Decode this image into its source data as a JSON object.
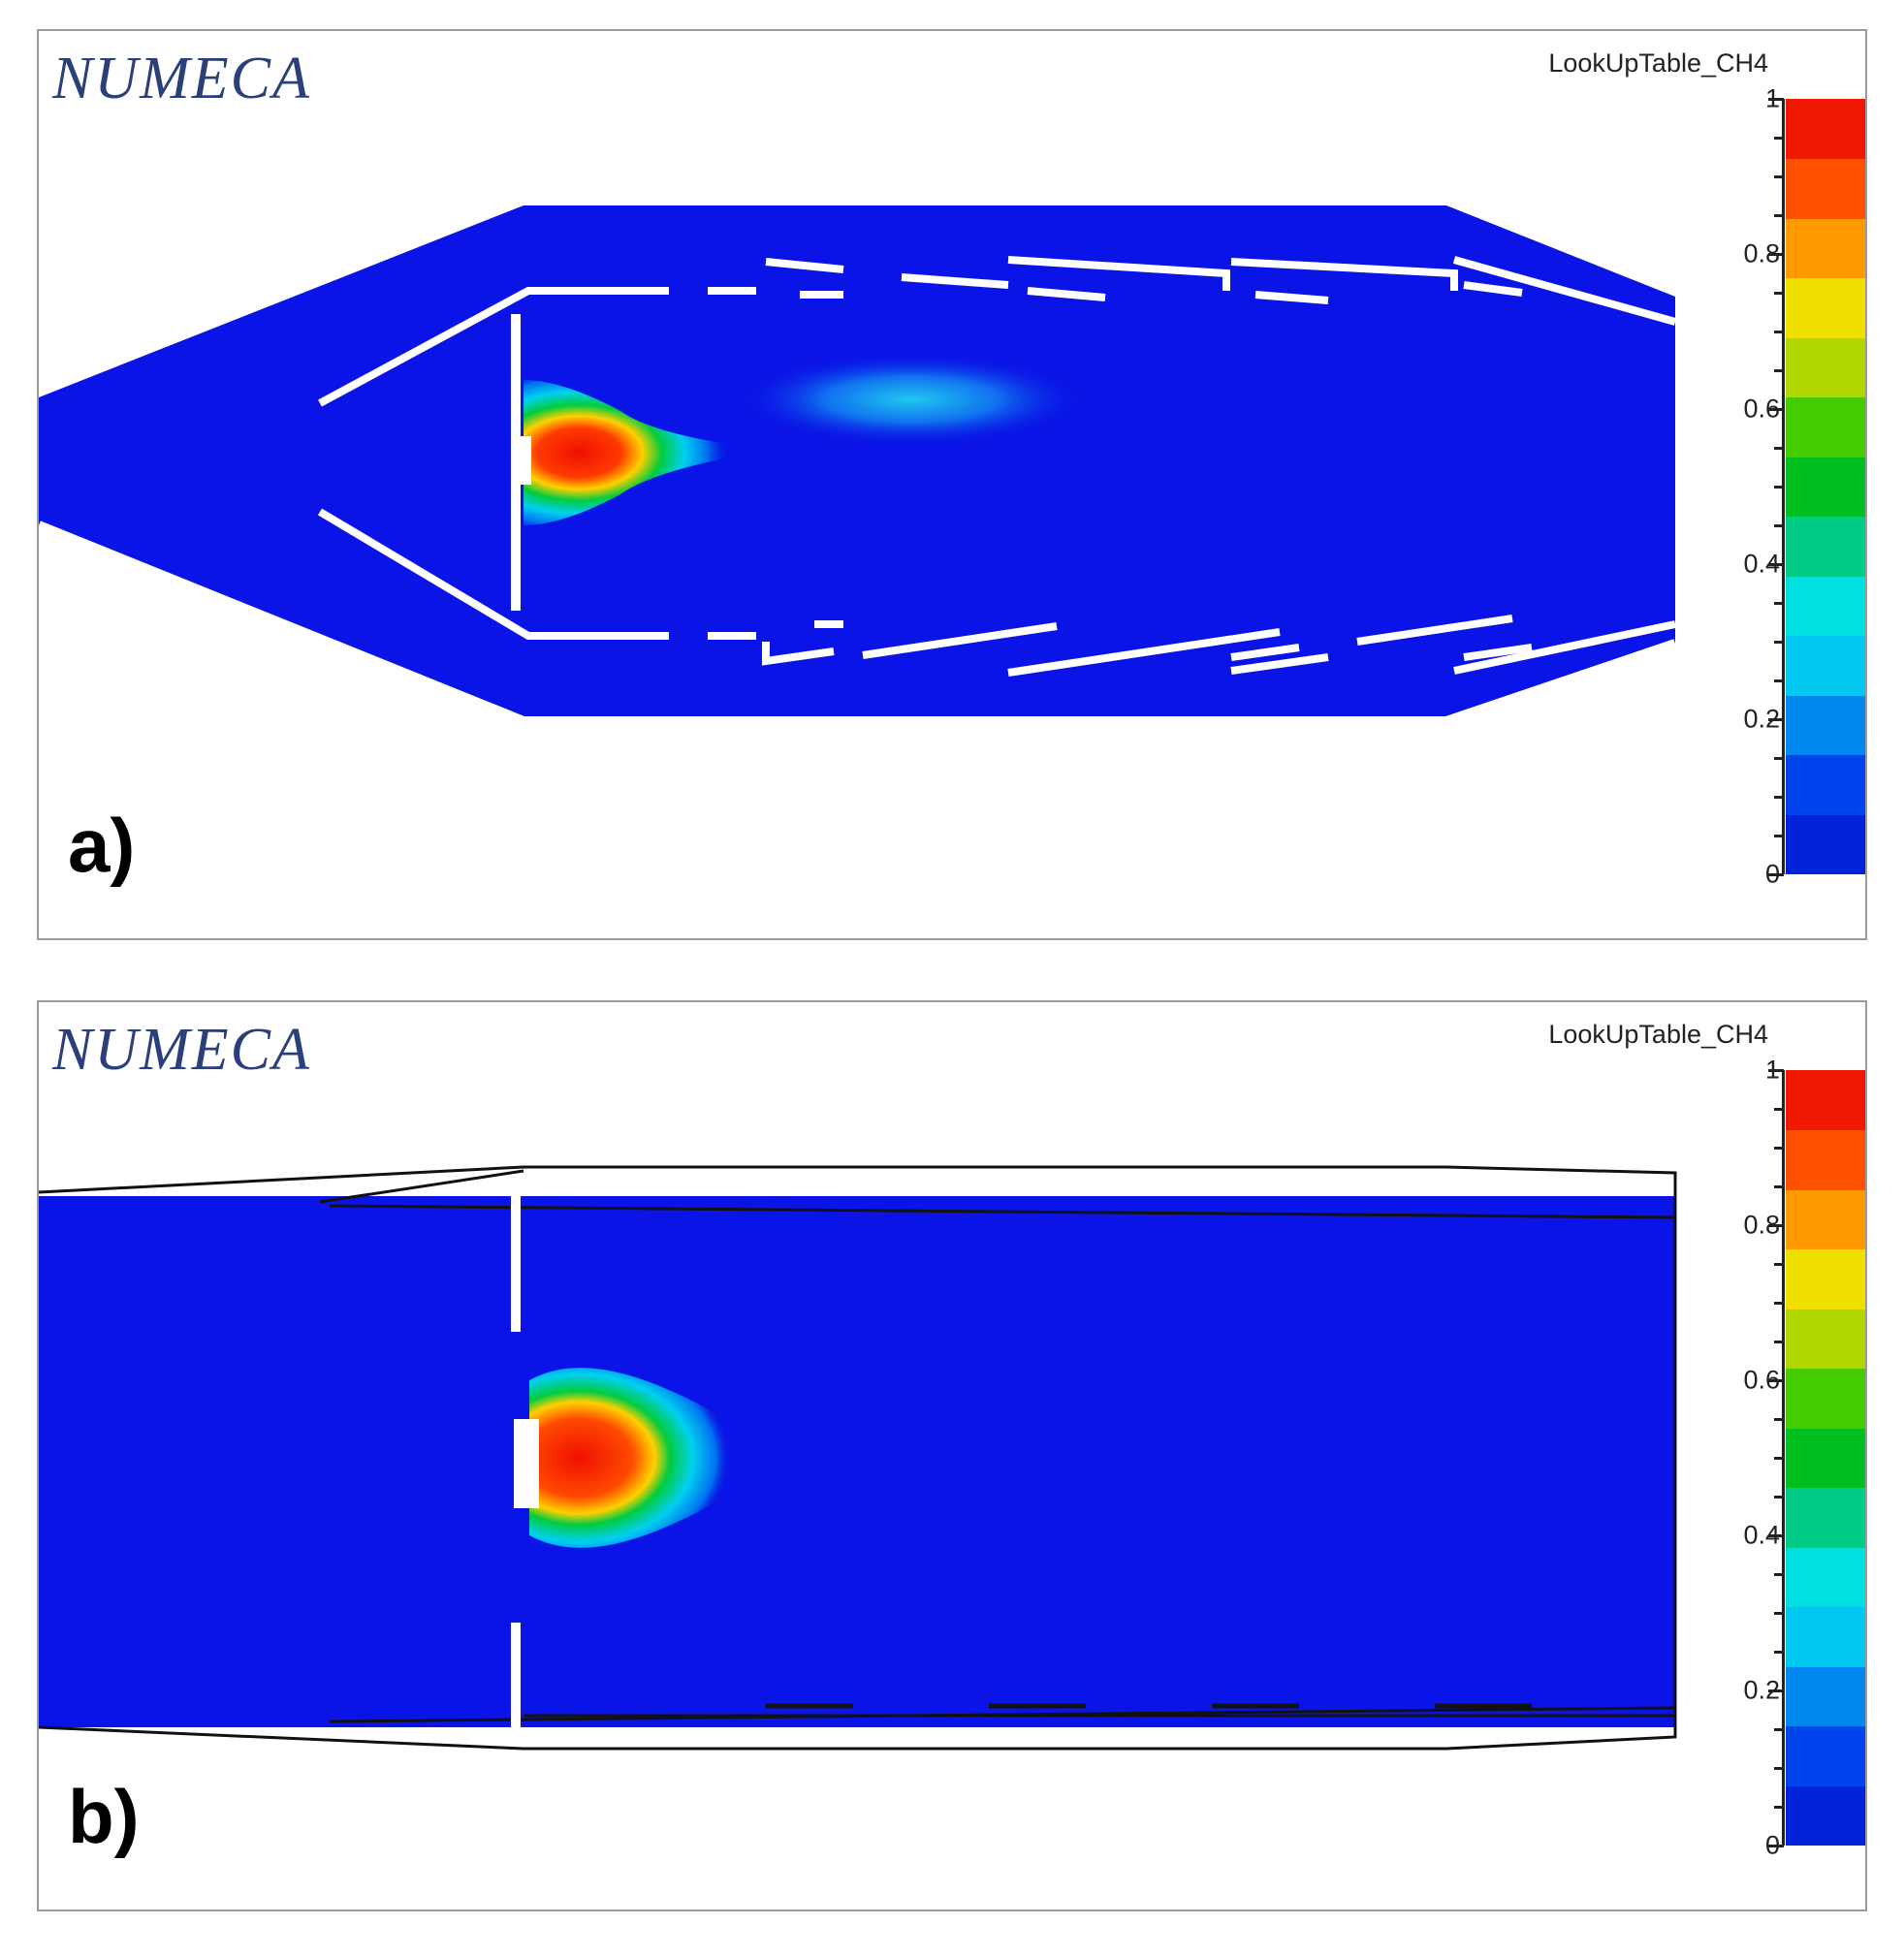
{
  "panels": [
    {
      "id": "a",
      "label": "a)",
      "brand": "NUMECA",
      "variable": "LookUpTable_CH4",
      "geometry": "tapered"
    },
    {
      "id": "b",
      "label": "b)",
      "brand": "NUMECA",
      "variable": "LookUpTable_CH4",
      "geometry": "straight"
    }
  ],
  "colorbar": {
    "min": 0,
    "max": 1,
    "ticks": [
      {
        "value": 0,
        "label": "0"
      },
      {
        "value": 0.2,
        "label": "0.2"
      },
      {
        "value": 0.4,
        "label": "0.4"
      },
      {
        "value": 0.6,
        "label": "0.6"
      },
      {
        "value": 0.8,
        "label": "0.8"
      },
      {
        "value": 1,
        "label": "1"
      }
    ],
    "colors": [
      "#0022d8",
      "#0044ee",
      "#0088f0",
      "#00c8f0",
      "#00e0e0",
      "#00cc88",
      "#00c020",
      "#44cc00",
      "#b0d800",
      "#f0e000",
      "#ff9a00",
      "#ff5000",
      "#f01800"
    ]
  },
  "colors": {
    "fluid": "#0a14e6",
    "wall": "#ffffff",
    "frame": "#9a9a9a"
  }
}
